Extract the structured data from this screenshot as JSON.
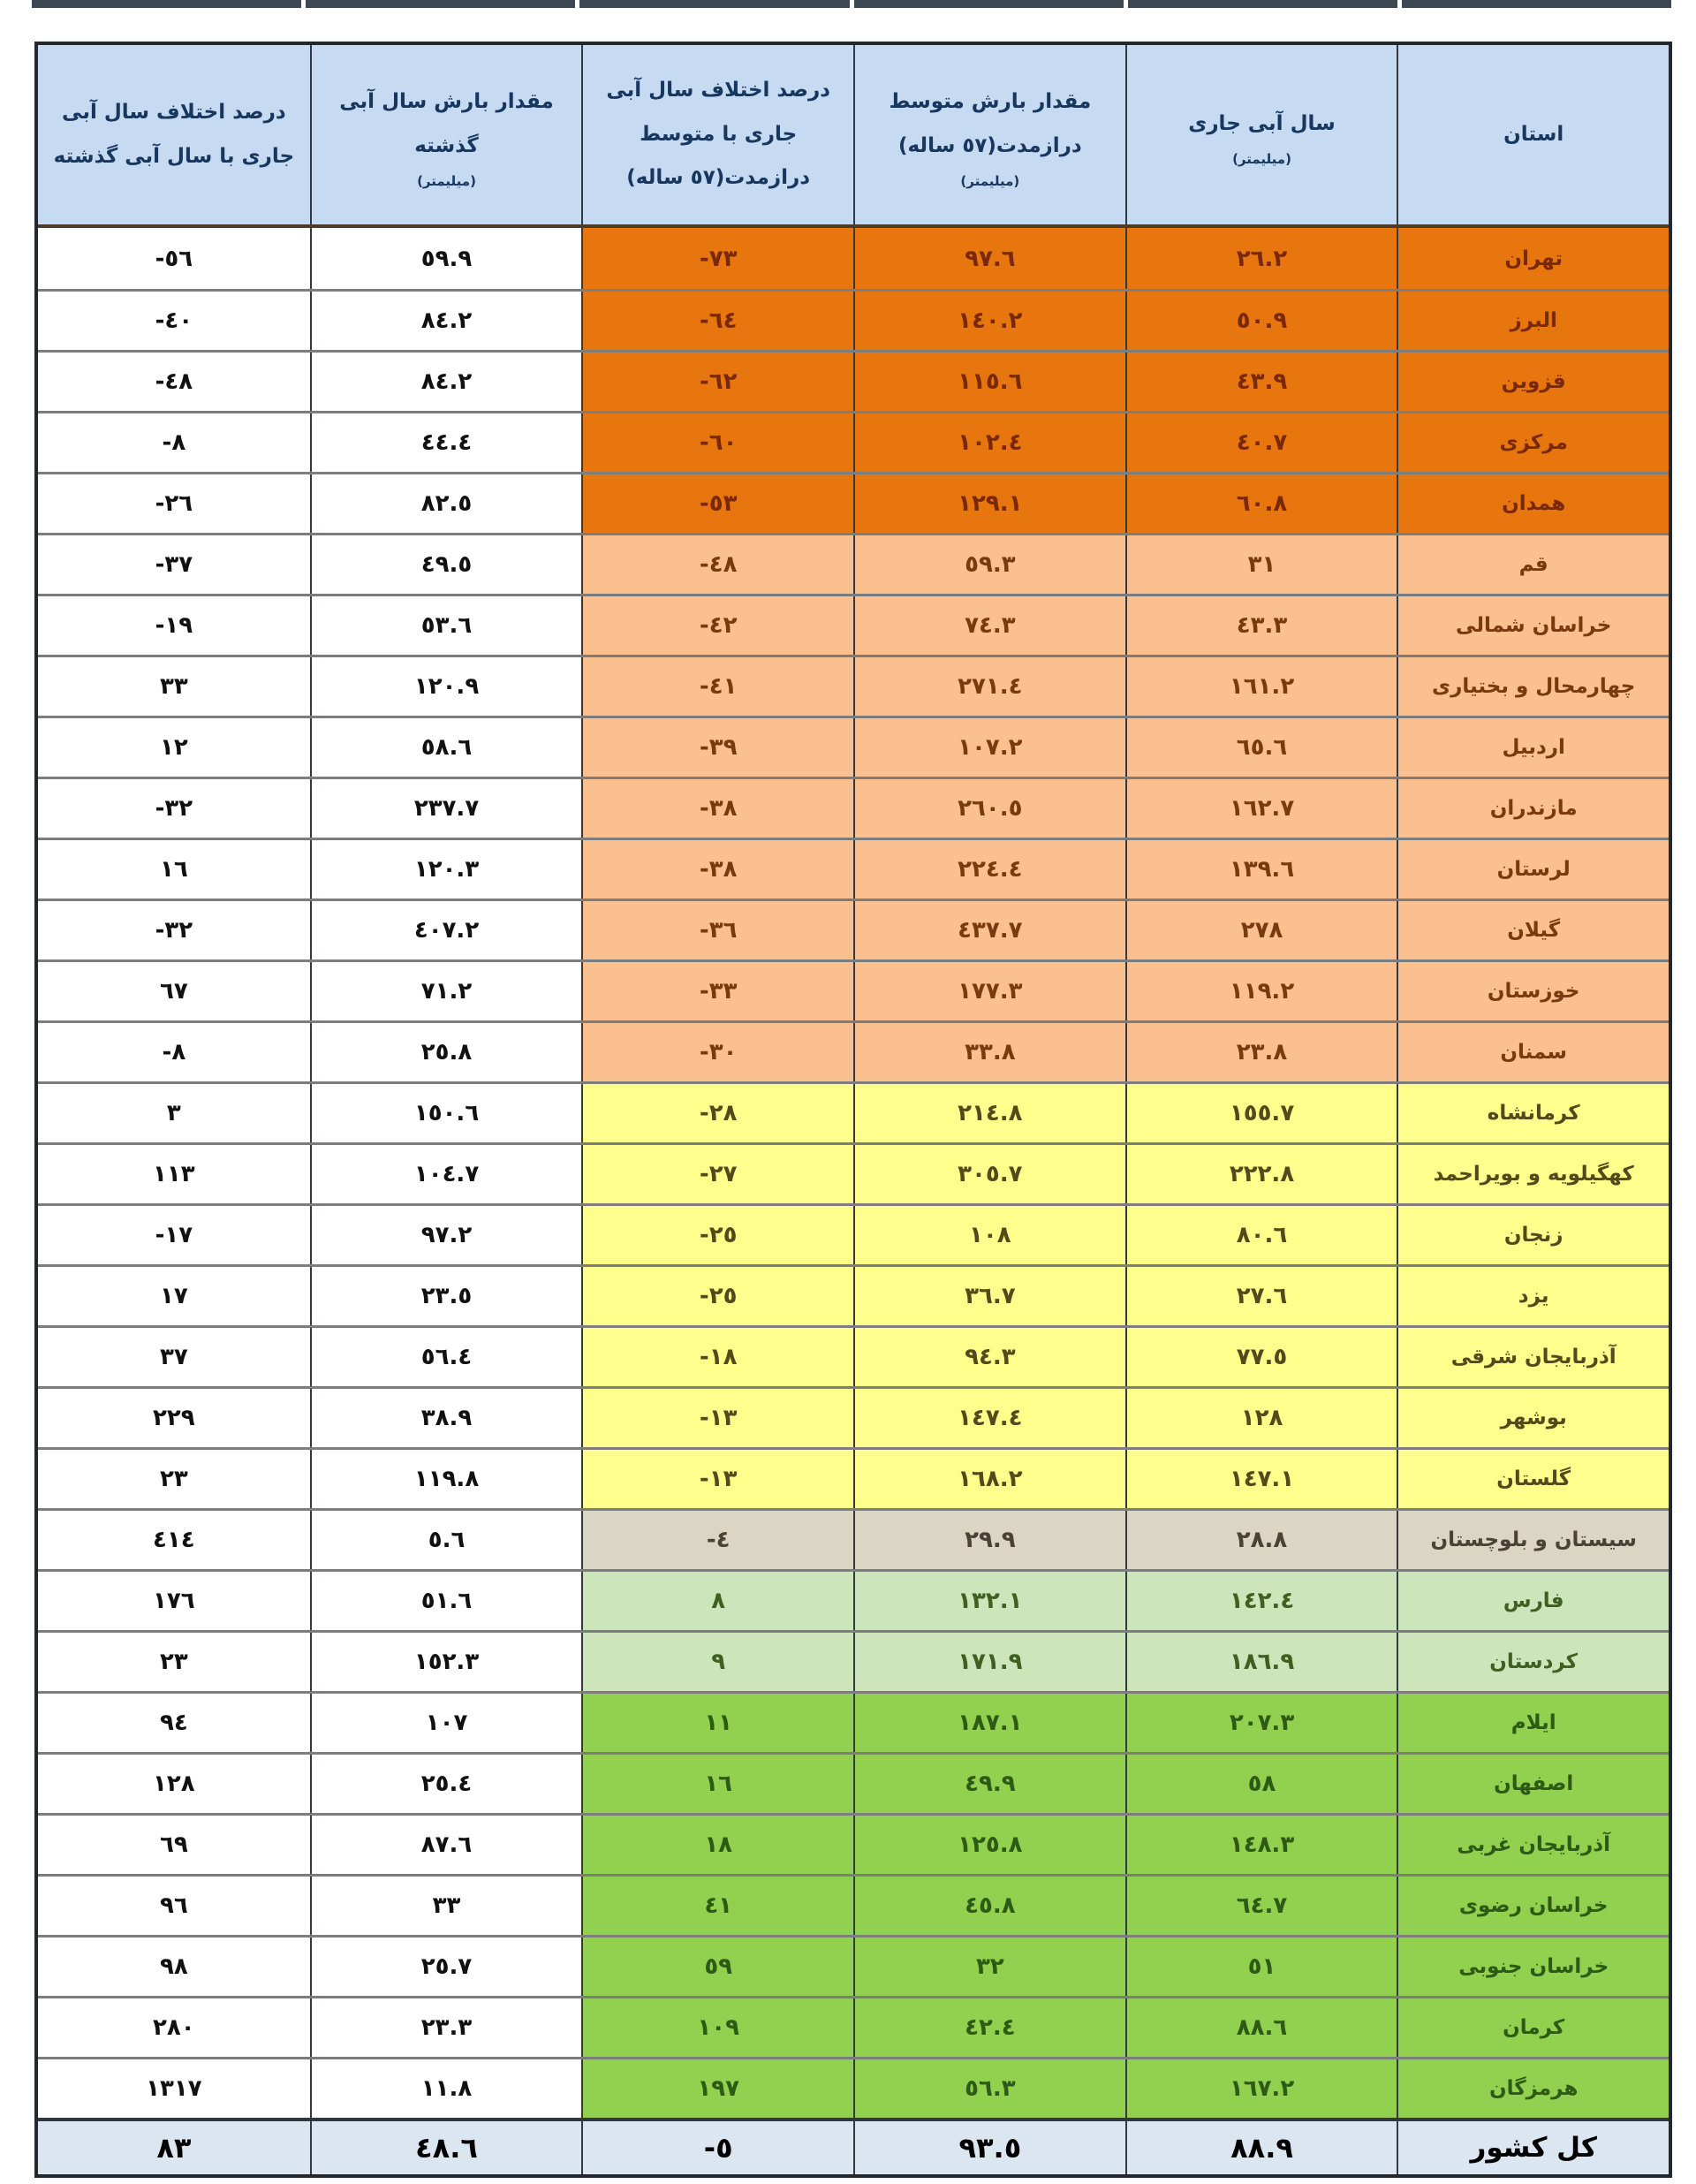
{
  "table": {
    "direction": "rtl",
    "digit_style": "arabic-indic",
    "columns": [
      {
        "key": "province",
        "title": "استان",
        "unit": ""
      },
      {
        "key": "current",
        "title": "سال آبی جاری",
        "unit": "(میلیمتر)"
      },
      {
        "key": "longterm",
        "title": "مقدار بارش متوسط\nدرازمدت(57 ساله)",
        "unit": "(میلیمتر)"
      },
      {
        "key": "diff_longterm",
        "title": "درصد اختلاف سال آبی\nجاری با متوسط\nدرازمدت(57 ساله)",
        "unit": ""
      },
      {
        "key": "lastyear",
        "title": "مقدار بارش سال آبی\nگذشته",
        "unit": "(میلیمتر)"
      },
      {
        "key": "diff_lastyear",
        "title": "درصد اختلاف سال آبی\nجاری با سال آبی گذشته",
        "unit": ""
      }
    ],
    "rows": [
      {
        "province": "تهران",
        "current": "26.2",
        "longterm": "97.6",
        "diff_longterm": "-73",
        "lastyear": "59.9",
        "diff_lastyear": "-56",
        "band": "dark-orange"
      },
      {
        "province": "البرز",
        "current": "50.9",
        "longterm": "140.2",
        "diff_longterm": "-64",
        "lastyear": "84.2",
        "diff_lastyear": "-40",
        "band": "dark-orange"
      },
      {
        "province": "قزوین",
        "current": "43.9",
        "longterm": "115.6",
        "diff_longterm": "-62",
        "lastyear": "84.2",
        "diff_lastyear": "-48",
        "band": "dark-orange"
      },
      {
        "province": "مرکزی",
        "current": "40.7",
        "longterm": "102.4",
        "diff_longterm": "-60",
        "lastyear": "44.4",
        "diff_lastyear": "-8",
        "band": "dark-orange"
      },
      {
        "province": "همدان",
        "current": "60.8",
        "longterm": "129.1",
        "diff_longterm": "-53",
        "lastyear": "82.5",
        "diff_lastyear": "-26",
        "band": "dark-orange"
      },
      {
        "province": "قم",
        "current": "31",
        "longterm": "59.3",
        "diff_longterm": "-48",
        "lastyear": "49.5",
        "diff_lastyear": "-37",
        "band": "light-orange"
      },
      {
        "province": "خراسان شمالی",
        "current": "43.3",
        "longterm": "74.3",
        "diff_longterm": "-42",
        "lastyear": "53.6",
        "diff_lastyear": "-19",
        "band": "light-orange"
      },
      {
        "province": "چهارمحال و بختیاری",
        "current": "161.2",
        "longterm": "271.4",
        "diff_longterm": "-41",
        "lastyear": "120.9",
        "diff_lastyear": "33",
        "band": "light-orange"
      },
      {
        "province": "اردبیل",
        "current": "65.6",
        "longterm": "107.2",
        "diff_longterm": "-39",
        "lastyear": "58.6",
        "diff_lastyear": "12",
        "band": "light-orange"
      },
      {
        "province": "مازندران",
        "current": "162.7",
        "longterm": "260.5",
        "diff_longterm": "-38",
        "lastyear": "237.7",
        "diff_lastyear": "-32",
        "band": "light-orange"
      },
      {
        "province": "لرستان",
        "current": "139.6",
        "longterm": "224.4",
        "diff_longterm": "-38",
        "lastyear": "120.3",
        "diff_lastyear": "16",
        "band": "light-orange"
      },
      {
        "province": "گیلان",
        "current": "278",
        "longterm": "437.7",
        "diff_longterm": "-36",
        "lastyear": "407.2",
        "diff_lastyear": "-32",
        "band": "light-orange"
      },
      {
        "province": "خوزستان",
        "current": "119.2",
        "longterm": "177.3",
        "diff_longterm": "-33",
        "lastyear": "71.2",
        "diff_lastyear": "67",
        "band": "light-orange"
      },
      {
        "province": "سمنان",
        "current": "23.8",
        "longterm": "33.8",
        "diff_longterm": "-30",
        "lastyear": "25.8",
        "diff_lastyear": "-8",
        "band": "light-orange"
      },
      {
        "province": "کرمانشاه",
        "current": "155.7",
        "longterm": "214.8",
        "diff_longterm": "-28",
        "lastyear": "150.6",
        "diff_lastyear": "3",
        "band": "yellow"
      },
      {
        "province": "کهگیلویه و بویراحمد",
        "current": "222.8",
        "longterm": "305.7",
        "diff_longterm": "-27",
        "lastyear": "104.7",
        "diff_lastyear": "113",
        "band": "yellow"
      },
      {
        "province": "زنجان",
        "current": "80.6",
        "longterm": "108",
        "diff_longterm": "-25",
        "lastyear": "97.2",
        "diff_lastyear": "-17",
        "band": "yellow"
      },
      {
        "province": "یزد",
        "current": "27.6",
        "longterm": "36.7",
        "diff_longterm": "-25",
        "lastyear": "23.5",
        "diff_lastyear": "17",
        "band": "yellow"
      },
      {
        "province": "آذربایجان شرقی",
        "current": "77.5",
        "longterm": "94.3",
        "diff_longterm": "-18",
        "lastyear": "56.4",
        "diff_lastyear": "37",
        "band": "yellow"
      },
      {
        "province": "بوشهر",
        "current": "128",
        "longterm": "147.4",
        "diff_longterm": "-13",
        "lastyear": "38.9",
        "diff_lastyear": "229",
        "band": "yellow"
      },
      {
        "province": "گلستان",
        "current": "147.1",
        "longterm": "168.2",
        "diff_longterm": "-13",
        "lastyear": "119.8",
        "diff_lastyear": "23",
        "band": "yellow"
      },
      {
        "province": "سیستان و بلوچستان",
        "current": "28.8",
        "longterm": "29.9",
        "diff_longterm": "-4",
        "lastyear": "5.6",
        "diff_lastyear": "414",
        "band": "gray"
      },
      {
        "province": "فارس",
        "current": "142.4",
        "longterm": "132.1",
        "diff_longterm": "8",
        "lastyear": "51.6",
        "diff_lastyear": "176",
        "band": "light-green"
      },
      {
        "province": "کردستان",
        "current": "186.9",
        "longterm": "171.9",
        "diff_longterm": "9",
        "lastyear": "152.3",
        "diff_lastyear": "23",
        "band": "light-green"
      },
      {
        "province": "ایلام",
        "current": "207.3",
        "longterm": "187.1",
        "diff_longterm": "11",
        "lastyear": "107",
        "diff_lastyear": "94",
        "band": "green"
      },
      {
        "province": "اصفهان",
        "current": "58",
        "longterm": "49.9",
        "diff_longterm": "16",
        "lastyear": "25.4",
        "diff_lastyear": "128",
        "band": "green"
      },
      {
        "province": "آذربایجان غربی",
        "current": "148.3",
        "longterm": "125.8",
        "diff_longterm": "18",
        "lastyear": "87.6",
        "diff_lastyear": "69",
        "band": "green"
      },
      {
        "province": "خراسان رضوی",
        "current": "64.7",
        "longterm": "45.8",
        "diff_longterm": "41",
        "lastyear": "33",
        "diff_lastyear": "96",
        "band": "green"
      },
      {
        "province": "خراسان جنوبی",
        "current": "51",
        "longterm": "32",
        "diff_longterm": "59",
        "lastyear": "25.7",
        "diff_lastyear": "98",
        "band": "green"
      },
      {
        "province": "کرمان",
        "current": "88.6",
        "longterm": "42.4",
        "diff_longterm": "109",
        "lastyear": "23.3",
        "diff_lastyear": "280",
        "band": "green"
      },
      {
        "province": "هرمزگان",
        "current": "167.2",
        "longterm": "56.3",
        "diff_longterm": "197",
        "lastyear": "11.8",
        "diff_lastyear": "1317",
        "band": "green"
      }
    ],
    "total": {
      "province": "کل کشور",
      "current": "88.9",
      "longterm": "93.5",
      "diff_longterm": "-5",
      "lastyear": "48.6",
      "diff_lastyear": "83"
    },
    "colors": {
      "header_bg": "#c6daf2",
      "header_text": "#17375e",
      "band_dark_orange": "#e8760e",
      "band_light_orange": "#fac08f",
      "band_yellow": "#fefe8d",
      "band_gray": "#dbd5c3",
      "band_light_green": "#cde5ba",
      "band_green": "#92d050",
      "total_row_bg": "#dce6f1",
      "plain_cell_bg": "#ffffff"
    }
  }
}
